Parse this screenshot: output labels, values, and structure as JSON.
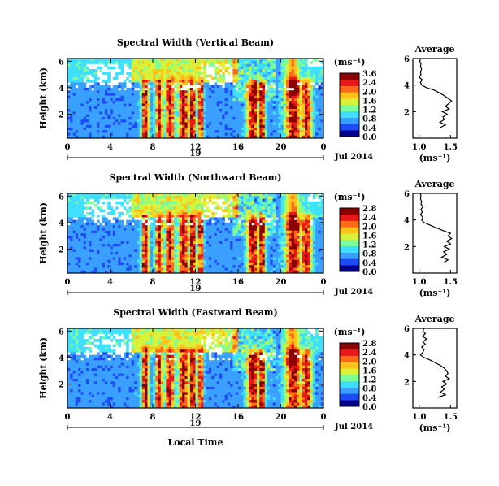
{
  "figure": {
    "date_label": "Jul 2014",
    "day_label": "19",
    "xlabel": "Local Time",
    "colorbar_unit": "(ms⁻¹)",
    "colormap": [
      "#00008a",
      "#1e4bf5",
      "#3aa0ff",
      "#3fe0ff",
      "#7dfc9a",
      "#d8f23a",
      "#ffc21a",
      "#ff6a1a",
      "#e8171a",
      "#8a0000"
    ]
  },
  "chart_data": [
    {
      "type": "heatmap",
      "panel": "vertical",
      "title": "Spectral Width (Vertical Beam)",
      "xlabel": "Local Time",
      "ylabel": "Height (km)",
      "x_ticks": [
        "0",
        "4",
        "8",
        "12",
        "16",
        "20",
        "0"
      ],
      "y_ticks": [
        "6",
        "4",
        "2"
      ],
      "xlim": [
        0,
        24
      ],
      "ylim": [
        0.2,
        6.2
      ],
      "colorbar": {
        "ticks": [
          "3.6",
          "2.4",
          "2.0",
          "1.6",
          "1.2",
          "0.8",
          "0.4",
          "0.0"
        ],
        "range": [
          0.0,
          3.6
        ],
        "label": "(ms⁻¹)"
      },
      "average_profile": {
        "title": "Average",
        "xlabel": "(ms⁻¹)",
        "x_ticks": [
          "1.0",
          "1.5"
        ],
        "y_ticks": [
          "6",
          "4",
          "2"
        ],
        "xlim": [
          0.9,
          1.6
        ],
        "ylim": [
          0,
          6
        ],
        "heights": [
          0.8,
          1.0,
          1.2,
          1.4,
          1.6,
          1.8,
          2.0,
          2.2,
          2.4,
          2.6,
          2.8,
          3.0,
          3.2,
          3.4,
          3.6,
          3.8,
          4.0,
          4.2,
          4.4,
          4.6,
          4.8,
          5.0,
          5.2,
          5.4,
          5.6,
          5.8,
          6.0
        ],
        "values": [
          1.34,
          1.42,
          1.33,
          1.4,
          1.38,
          1.45,
          1.37,
          1.48,
          1.42,
          1.47,
          1.52,
          1.46,
          1.4,
          1.33,
          1.25,
          1.12,
          1.04,
          1.02,
          1.05,
          1.0,
          1.03,
          1.02,
          1.04,
          1.02,
          1.03,
          1.01,
          1.02
        ]
      }
    },
    {
      "type": "heatmap",
      "panel": "northward",
      "title": "Spectral Width (Northward Beam)",
      "xlabel": "Local Time",
      "ylabel": "Height (km)",
      "x_ticks": [
        "0",
        "4",
        "8",
        "12",
        "16",
        "20",
        "0"
      ],
      "y_ticks": [
        "6",
        "4",
        "2"
      ],
      "xlim": [
        0,
        24
      ],
      "ylim": [
        0.2,
        6.2
      ],
      "colorbar": {
        "ticks": [
          "2.8",
          "2.4",
          "2.0",
          "1.6",
          "1.2",
          "0.8",
          "0.4",
          "0.0"
        ],
        "range": [
          0.0,
          2.8
        ],
        "label": "(ms⁻¹)"
      },
      "average_profile": {
        "title": "Average",
        "xlabel": "(ms⁻¹)",
        "x_ticks": [
          "1.0",
          "1.5"
        ],
        "y_ticks": [
          "6",
          "4",
          "2"
        ],
        "xlim": [
          0.9,
          1.6
        ],
        "ylim": [
          0,
          6
        ],
        "heights": [
          0.8,
          1.0,
          1.2,
          1.4,
          1.6,
          1.8,
          2.0,
          2.2,
          2.4,
          2.6,
          2.8,
          3.0,
          3.2,
          3.4,
          3.6,
          3.8,
          4.0,
          4.2,
          4.4,
          4.6,
          4.8,
          5.0,
          5.2,
          5.4,
          5.6,
          5.8,
          6.0
        ],
        "values": [
          1.4,
          1.46,
          1.36,
          1.44,
          1.39,
          1.48,
          1.4,
          1.5,
          1.44,
          1.52,
          1.46,
          1.5,
          1.38,
          1.28,
          1.18,
          1.08,
          1.04,
          1.06,
          1.02,
          1.05,
          1.03,
          1.06,
          1.03,
          1.04,
          1.02,
          1.03,
          1.02
        ]
      }
    },
    {
      "type": "heatmap",
      "panel": "eastward",
      "title": "Spectral Width (Eastward Beam)",
      "xlabel": "Local Time",
      "ylabel": "Height (km)",
      "x_ticks": [
        "0",
        "4",
        "8",
        "12",
        "16",
        "20",
        "0"
      ],
      "y_ticks": [
        "6",
        "4",
        "2"
      ],
      "xlim": [
        0,
        24
      ],
      "ylim": [
        0.2,
        6.2
      ],
      "colorbar": {
        "ticks": [
          "2.8",
          "2.4",
          "2.0",
          "1.6",
          "1.2",
          "0.8",
          "0.4",
          "0.0"
        ],
        "range": [
          0.0,
          2.8
        ],
        "label": "(ms⁻¹)"
      },
      "average_profile": {
        "title": "Average",
        "xlabel": "(ms⁻¹)",
        "x_ticks": [
          "1.0",
          "1.5"
        ],
        "y_ticks": [
          "6",
          "4",
          "2"
        ],
        "xlim": [
          0.9,
          1.6
        ],
        "ylim": [
          0,
          6
        ],
        "heights": [
          0.8,
          1.0,
          1.2,
          1.4,
          1.6,
          1.8,
          2.0,
          2.2,
          2.4,
          2.6,
          2.8,
          3.0,
          3.2,
          3.4,
          3.6,
          3.8,
          4.0,
          4.2,
          4.4,
          4.6,
          4.8,
          5.0,
          5.2,
          5.4,
          5.6,
          5.8,
          6.0
        ],
        "values": [
          1.3,
          1.42,
          1.34,
          1.4,
          1.36,
          1.44,
          1.38,
          1.48,
          1.42,
          1.46,
          1.44,
          1.4,
          1.34,
          1.26,
          1.18,
          1.08,
          1.02,
          1.06,
          1.08,
          1.04,
          1.1,
          1.06,
          1.12,
          1.05,
          1.1,
          1.06,
          1.08
        ]
      }
    }
  ]
}
